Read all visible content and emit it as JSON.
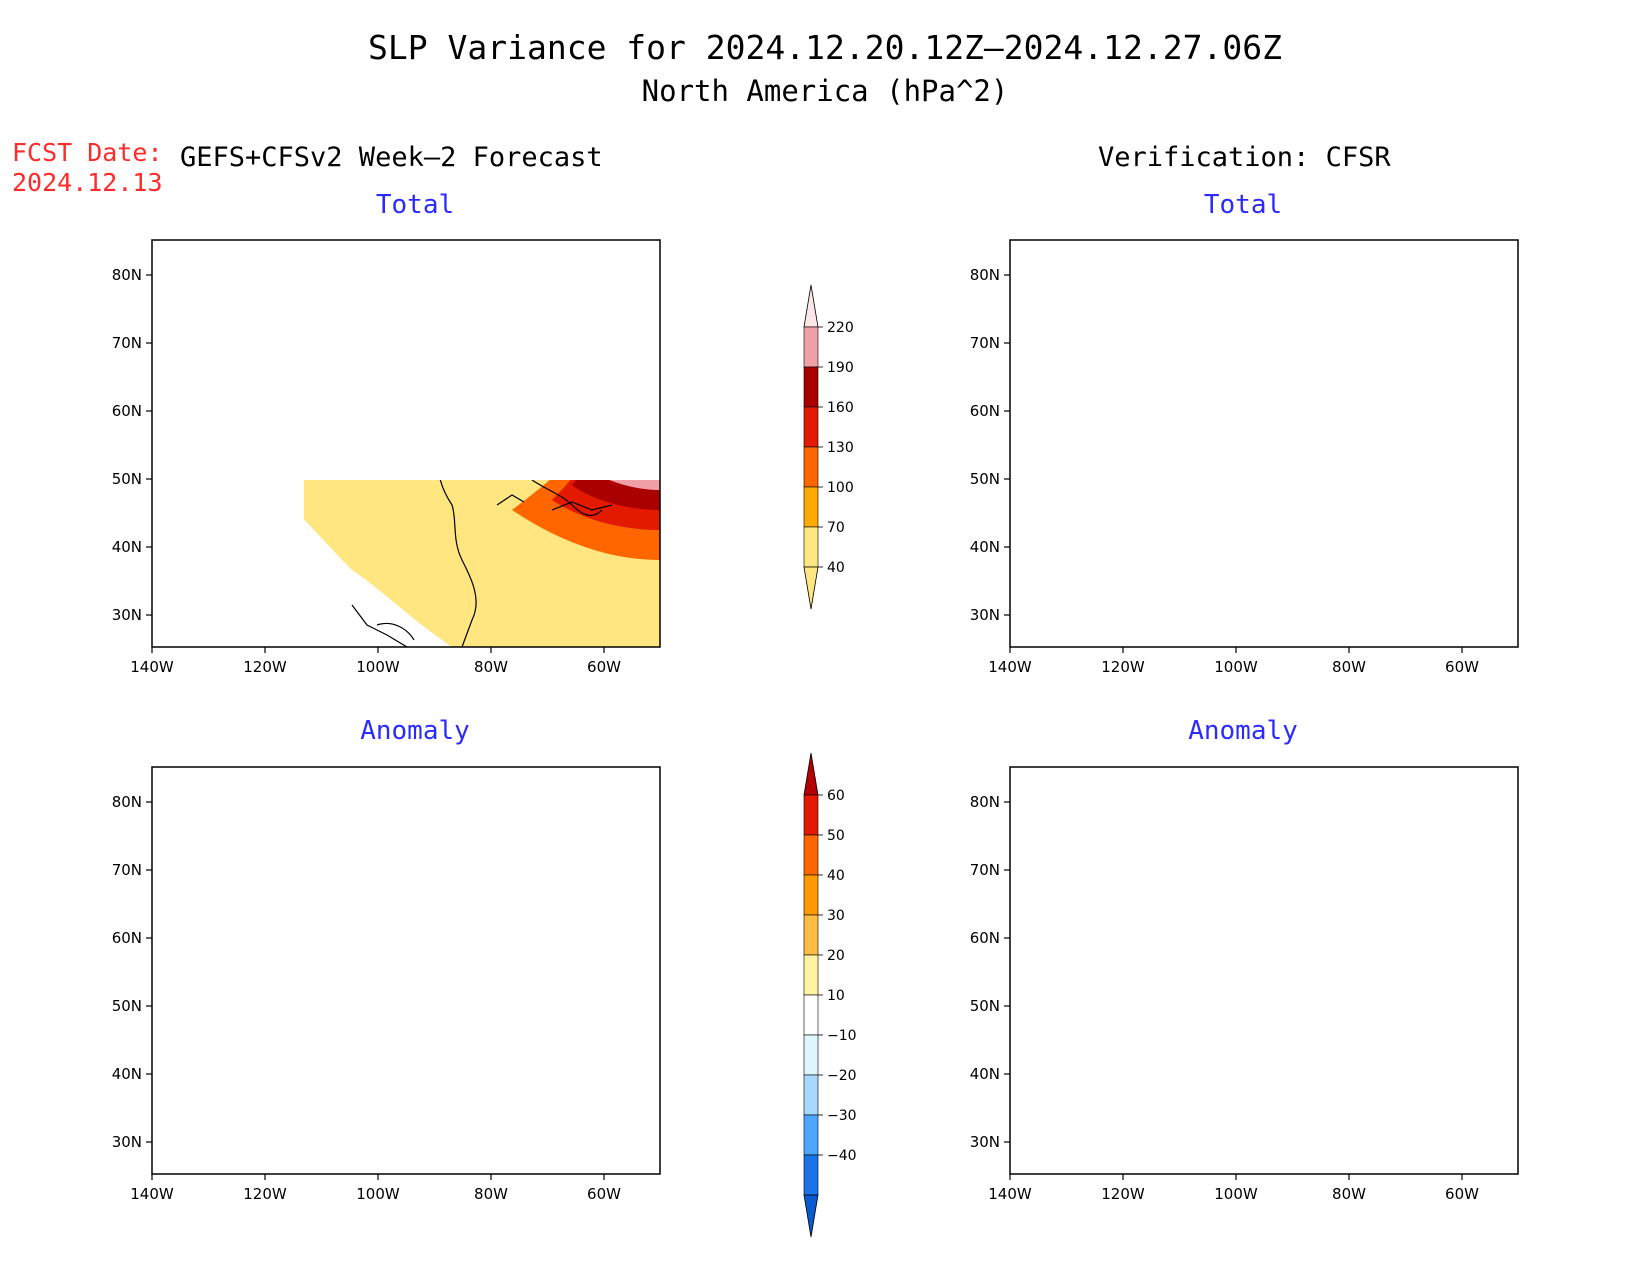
{
  "title": "SLP Variance for 2024.12.20.12Z–2024.12.27.06Z",
  "subtitle": "North America (hPa^2)",
  "forecast": {
    "date_label": "FCST Date:",
    "date_value": "2024.12.13",
    "heading": "GEFS+CFSv2 Week–2 Forecast"
  },
  "verification": {
    "heading": "Verification: CFSR"
  },
  "axes": {
    "lon_ticks": [
      "140W",
      "120W",
      "100W",
      "80W",
      "60W"
    ],
    "lat_ticks": [
      "80N",
      "70N",
      "60N",
      "50N",
      "40N",
      "30N"
    ]
  },
  "panels": [
    {
      "id": "fcst-total",
      "title": "Total"
    },
    {
      "id": "verif-total",
      "title": "Total"
    },
    {
      "id": "fcst-anomaly",
      "title": "Anomaly"
    },
    {
      "id": "verif-anomaly",
      "title": "Anomaly"
    }
  ],
  "colorbar_total": {
    "levels": [
      "40",
      "70",
      "100",
      "130",
      "160",
      "190",
      "220"
    ],
    "colors": [
      "#ffe680",
      "#ffaa00",
      "#ff6600",
      "#e31a00",
      "#aa0000",
      "#f2a0a8",
      "#fde6e8"
    ]
  },
  "colorbar_anomaly": {
    "levels": [
      "60",
      "50",
      "40",
      "30",
      "20",
      "10",
      "−10",
      "−20",
      "−30",
      "−40"
    ],
    "colors_top_to_bottom": [
      "#b40000",
      "#e31a00",
      "#ff6600",
      "#ff9900",
      "#ffbb44",
      "#fff2a0",
      "#ffffff",
      "#dff5ff",
      "#a8d8ff",
      "#4da6ff",
      "#1a73e8",
      "#0a5ad0"
    ]
  }
}
